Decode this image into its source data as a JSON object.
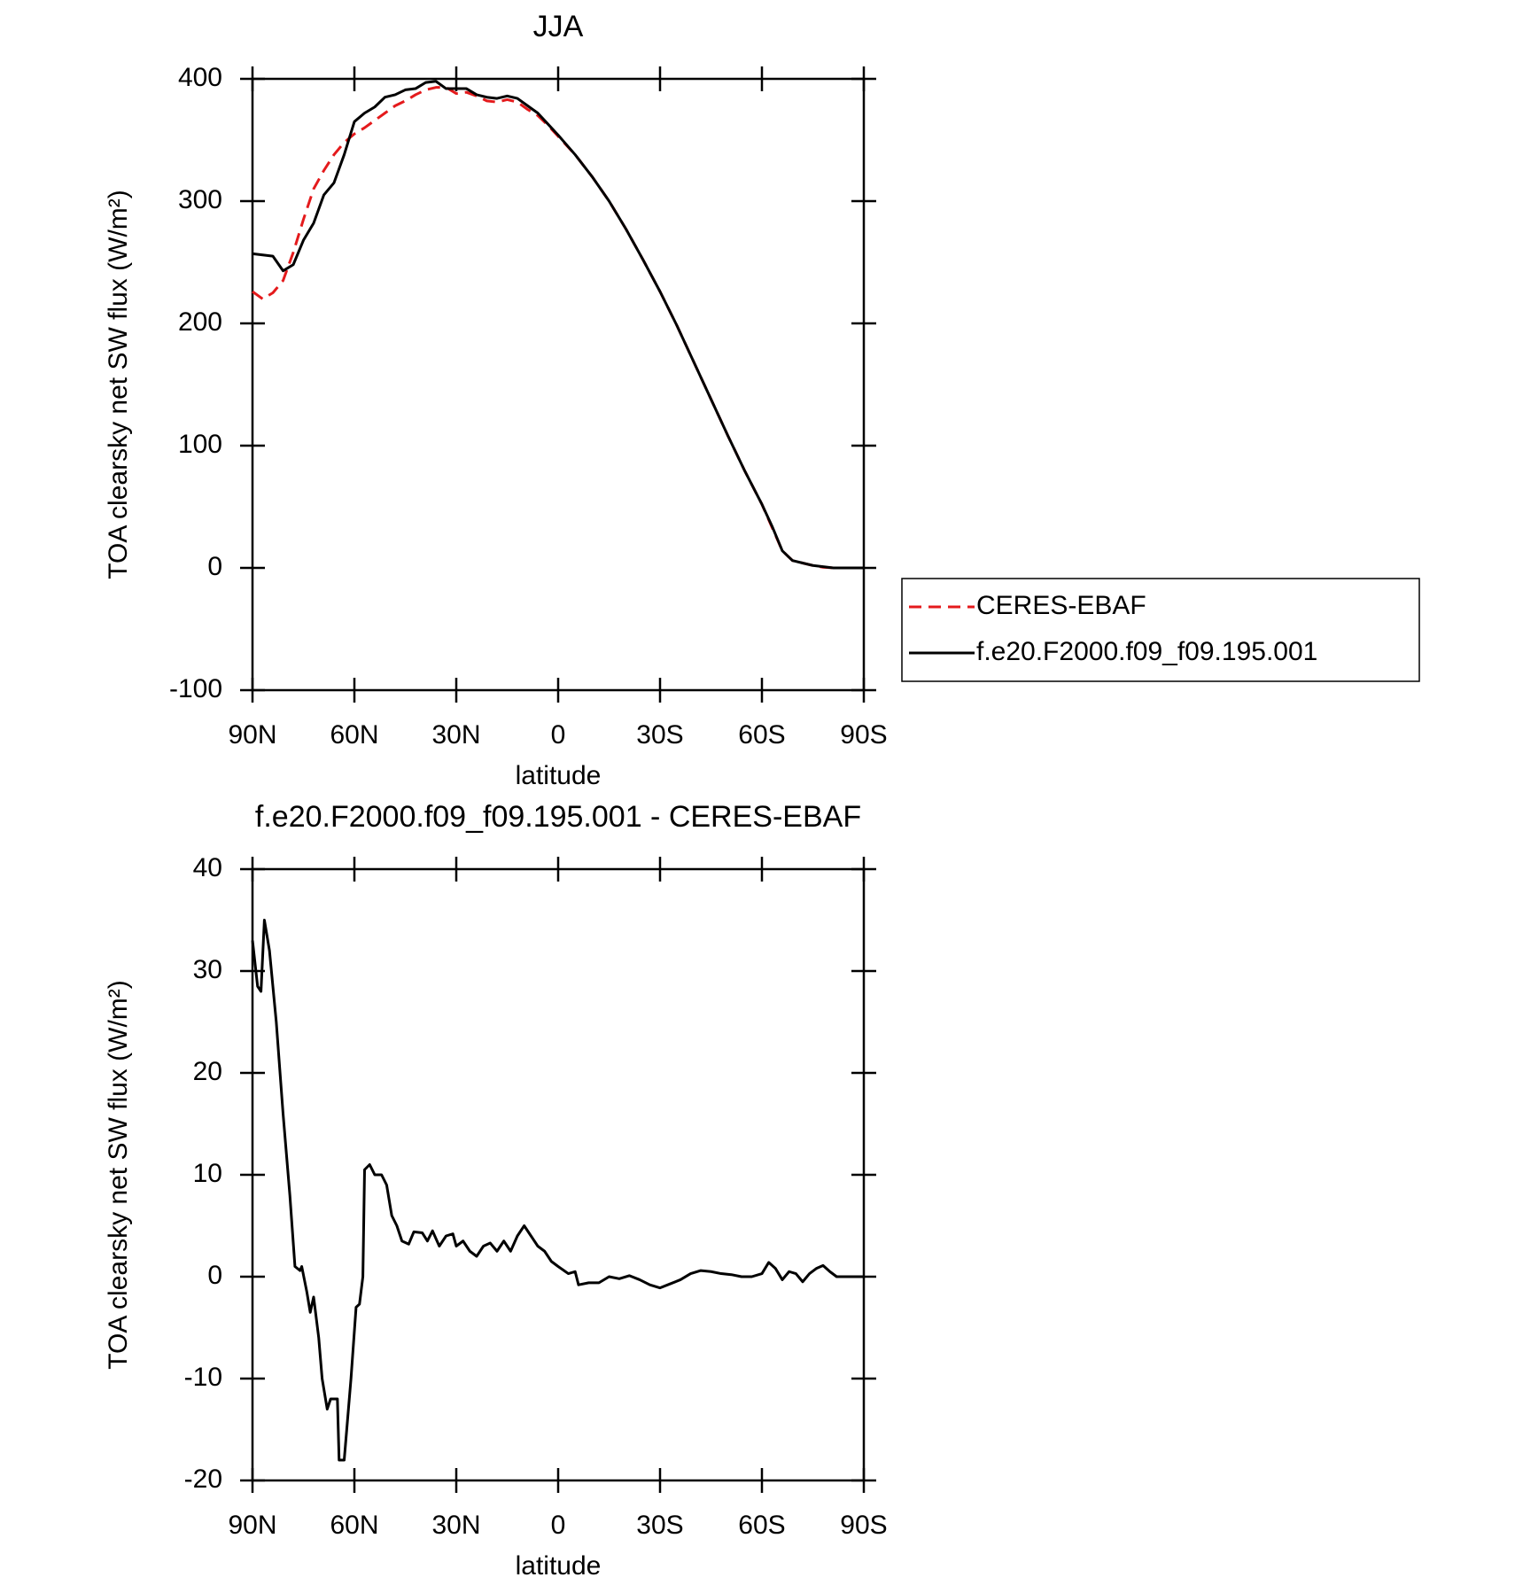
{
  "chart_data": [
    {
      "type": "line",
      "title": "JJA",
      "x_label": "latitude",
      "y_label": "TOA clearsky net SW flux (W/m²)",
      "x": [
        90,
        87,
        84,
        81,
        78,
        75,
        72,
        69,
        66,
        63,
        60,
        57,
        54,
        51,
        48,
        45,
        42,
        39,
        36,
        33,
        30,
        27,
        24,
        21,
        18,
        15,
        12,
        9,
        6,
        3,
        0,
        -5,
        -10,
        -15,
        -20,
        -25,
        -30,
        -35,
        -40,
        -45,
        -50,
        -55,
        -60,
        -63,
        -66,
        -69,
        -72,
        -75,
        -78,
        -81,
        -84,
        -87,
        -90
      ],
      "series": [
        {
          "name": "CERES-EBAF",
          "color": "#e41a1c",
          "style": "dashed",
          "values": [
            226,
            220,
            225,
            235,
            258,
            285,
            310,
            325,
            338,
            348,
            355,
            360,
            366,
            372,
            378,
            382,
            387,
            391,
            393,
            393,
            388,
            389,
            386,
            382,
            381,
            383,
            381,
            375,
            370,
            362,
            353,
            338,
            320,
            300,
            277,
            252,
            226,
            198,
            168,
            138,
            108,
            79,
            52,
            33,
            14,
            6,
            4,
            2,
            0.5,
            0,
            0,
            0,
            0
          ]
        },
        {
          "name": "f.e20.F2000.f09_f09.195.001",
          "color": "#000000",
          "style": "solid",
          "values": [
            257,
            256,
            255,
            243,
            248,
            268,
            282,
            305,
            315,
            338,
            365,
            372,
            377,
            385,
            387,
            391,
            392,
            397,
            398,
            392,
            392,
            392,
            387,
            385,
            384,
            386,
            384,
            378,
            372,
            363,
            354,
            338,
            320,
            300,
            277,
            252,
            226,
            198,
            168,
            138,
            108,
            79,
            52,
            34,
            14,
            6,
            4,
            2,
            1,
            0,
            0,
            0,
            0
          ]
        }
      ],
      "xlim": [
        90,
        -90
      ],
      "xticks": [
        {
          "value": 90,
          "label": "90N"
        },
        {
          "value": 60,
          "label": "60N"
        },
        {
          "value": 30,
          "label": "30N"
        },
        0,
        {
          "value": -30,
          "label": "30S"
        },
        {
          "value": -60,
          "label": "60S"
        },
        {
          "value": -90,
          "label": "90S"
        }
      ],
      "ylim": [
        -100,
        400
      ],
      "yticks": [
        -100,
        0,
        100,
        200,
        300,
        400
      ],
      "legend": "right"
    },
    {
      "type": "line",
      "title": "f.e20.F2000.f09_f09.195.001 - CERES-EBAF",
      "x_label": "latitude",
      "y_label": "TOA clearsky net SW flux (W/m²)",
      "x": [
        90,
        88.5,
        87.5,
        86.5,
        85,
        83,
        81,
        79,
        77.5,
        76,
        75.5,
        74,
        73,
        72,
        70.5,
        69.5,
        68,
        67,
        65,
        64.5,
        63,
        61,
        59.5,
        58.5,
        57.5,
        57,
        55.5,
        54,
        52,
        50.5,
        49,
        47.5,
        46,
        44,
        42.5,
        40,
        38.5,
        37,
        35,
        33,
        31,
        30,
        28,
        26,
        24,
        22,
        20,
        18,
        16,
        14,
        12,
        10,
        8,
        6,
        4,
        2,
        0,
        -3,
        -5,
        -6,
        -9,
        -12,
        -15,
        -18,
        -21,
        -24,
        -27,
        -30,
        -33,
        -36,
        -39,
        -42,
        -45,
        -48,
        -51,
        -54,
        -57,
        -60,
        -62,
        -64,
        -66,
        -68,
        -70,
        -72,
        -74,
        -76,
        -78,
        -80,
        -82,
        -84,
        -87,
        -90
      ],
      "series": [
        {
          "name": "f.e20.F2000.f09_f09.195.001 - CERES-EBAF",
          "color": "#000000",
          "style": "solid",
          "values": [
            33,
            28.5,
            28,
            35,
            32,
            25,
            16,
            8,
            1,
            0.6,
            1,
            -1.5,
            -3.5,
            -2,
            -6,
            -10,
            -13,
            -12,
            -12,
            -18,
            -18,
            -10,
            -3,
            -2.7,
            0,
            10.5,
            11,
            10,
            10,
            9,
            6,
            5,
            3.5,
            3.2,
            4.4,
            4.3,
            3.5,
            4.5,
            3,
            4,
            4.2,
            3,
            3.5,
            2.5,
            2,
            3,
            3.3,
            2.5,
            3.5,
            2.5,
            4,
            5,
            4,
            3,
            2.5,
            1.5,
            1,
            0.3,
            0.5,
            -0.8,
            -0.6,
            -0.6,
            0,
            -0.2,
            0.1,
            -0.3,
            -0.8,
            -1.1,
            -0.7,
            -0.3,
            0.3,
            0.6,
            0.5,
            0.3,
            0.2,
            0,
            0,
            0.3,
            1.4,
            0.8,
            -0.3,
            0.5,
            0.3,
            -0.5,
            0.3,
            0.8,
            1.1,
            0.5,
            0,
            0,
            0,
            0
          ]
        }
      ],
      "xlim": [
        90,
        -90
      ],
      "xticks": [
        {
          "value": 90,
          "label": "90N"
        },
        {
          "value": 60,
          "label": "60N"
        },
        {
          "value": 30,
          "label": "30N"
        },
        0,
        {
          "value": -30,
          "label": "30S"
        },
        {
          "value": -60,
          "label": "60S"
        },
        {
          "value": -90,
          "label": "90S"
        }
      ],
      "ylim": [
        -20,
        40
      ],
      "yticks": [
        -20,
        -10,
        0,
        10,
        20,
        30,
        40
      ]
    }
  ]
}
